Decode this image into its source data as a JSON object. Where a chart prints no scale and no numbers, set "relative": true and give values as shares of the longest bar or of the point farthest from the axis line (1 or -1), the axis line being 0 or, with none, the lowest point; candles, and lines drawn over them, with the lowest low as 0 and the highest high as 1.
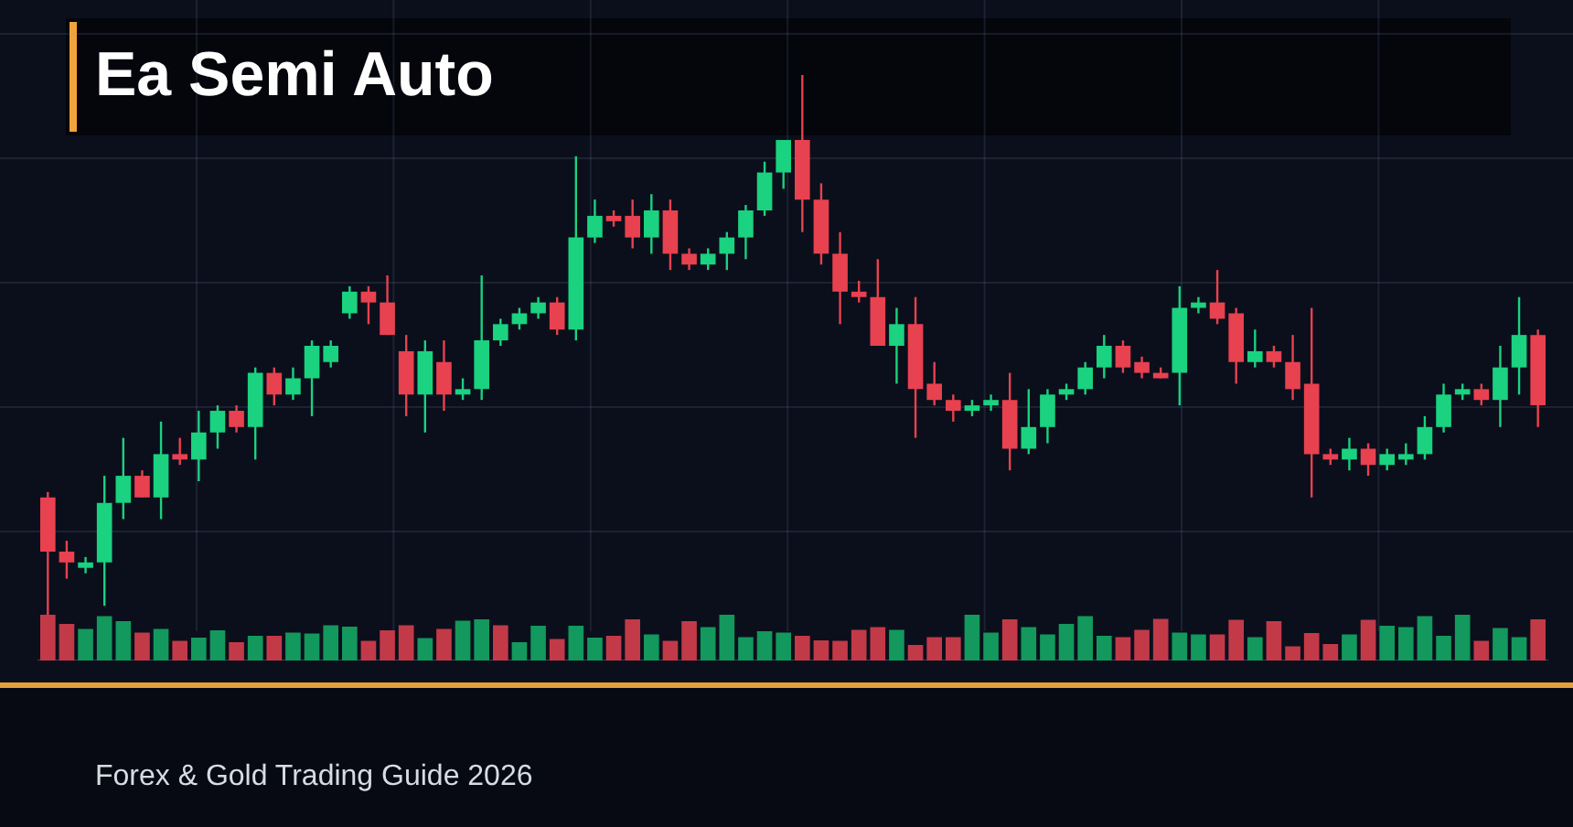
{
  "chart_data": [
    {
      "type": "candlestick",
      "title": "Ea Semi Auto",
      "subtitle": "Forex & Gold Trading Guide 2026",
      "relative": true,
      "grid": true,
      "categories": [
        null,
        null,
        null,
        null,
        null,
        null,
        null,
        null,
        null,
        null,
        null,
        null,
        null,
        null,
        null,
        null,
        null,
        null,
        null,
        null,
        null,
        null,
        null,
        null,
        null,
        null,
        null,
        null,
        null,
        null,
        null,
        null,
        null,
        null,
        null,
        null,
        null,
        null,
        null,
        null,
        null,
        null,
        null,
        null,
        null,
        null,
        null,
        null,
        null,
        null,
        null,
        null,
        null,
        null,
        null,
        null,
        null,
        null,
        null,
        null,
        null,
        null,
        null,
        null,
        null,
        null,
        null,
        null,
        null,
        null,
        null,
        null,
        null,
        null,
        null,
        null,
        null,
        null,
        null,
        null
      ],
      "ohlc": [
        [
          0.22,
          0.23,
          0,
          0.12
        ],
        [
          0.12,
          0.14,
          0.07,
          0.1
        ],
        [
          0.09,
          0.11,
          0.08,
          0.1
        ],
        [
          0.1,
          0.26,
          0.02,
          0.21
        ],
        [
          0.21,
          0.33,
          0.18,
          0.26
        ],
        [
          0.26,
          0.27,
          0.22,
          0.22
        ],
        [
          0.22,
          0.36,
          0.18,
          0.3
        ],
        [
          0.3,
          0.33,
          0.28,
          0.29
        ],
        [
          0.29,
          0.38,
          0.25,
          0.34
        ],
        [
          0.34,
          0.39,
          0.31,
          0.38
        ],
        [
          0.38,
          0.39,
          0.34,
          0.35
        ],
        [
          0.35,
          0.46,
          0.29,
          0.45
        ],
        [
          0.45,
          0.46,
          0.39,
          0.41
        ],
        [
          0.41,
          0.46,
          0.4,
          0.44
        ],
        [
          0.44,
          0.51,
          0.37,
          0.5
        ],
        [
          0.47,
          0.51,
          0.46,
          0.5
        ],
        [
          0.56,
          0.61,
          0.55,
          0.6
        ],
        [
          0.6,
          0.61,
          0.54,
          0.58
        ],
        [
          0.58,
          0.63,
          0.52,
          0.52
        ],
        [
          0.49,
          0.52,
          0.37,
          0.41
        ],
        [
          0.41,
          0.51,
          0.34,
          0.49
        ],
        [
          0.47,
          0.51,
          0.38,
          0.41
        ],
        [
          0.41,
          0.44,
          0.4,
          0.42
        ],
        [
          0.42,
          0.63,
          0.4,
          0.51
        ],
        [
          0.51,
          0.55,
          0.5,
          0.54
        ],
        [
          0.54,
          0.57,
          0.53,
          0.56
        ],
        [
          0.56,
          0.59,
          0.55,
          0.58
        ],
        [
          0.58,
          0.59,
          0.52,
          0.53
        ],
        [
          0.53,
          0.85,
          0.51,
          0.7
        ],
        [
          0.7,
          0.77,
          0.69,
          0.74
        ],
        [
          0.74,
          0.75,
          0.72,
          0.73
        ],
        [
          0.74,
          0.77,
          0.68,
          0.7
        ],
        [
          0.7,
          0.78,
          0.67,
          0.75
        ],
        [
          0.75,
          0.77,
          0.64,
          0.67
        ],
        [
          0.67,
          0.68,
          0.64,
          0.65
        ],
        [
          0.65,
          0.68,
          0.64,
          0.67
        ],
        [
          0.67,
          0.71,
          0.64,
          0.7
        ],
        [
          0.7,
          0.76,
          0.66,
          0.75
        ],
        [
          0.75,
          0.84,
          0.74,
          0.82
        ],
        [
          0.82,
          0.88,
          0.79,
          0.88
        ],
        [
          0.88,
          1,
          0.71,
          0.77
        ],
        [
          0.77,
          0.8,
          0.65,
          0.67
        ],
        [
          0.67,
          0.71,
          0.54,
          0.6
        ],
        [
          0.6,
          0.62,
          0.58,
          0.59
        ],
        [
          0.59,
          0.66,
          0.5,
          0.5
        ],
        [
          0.5,
          0.57,
          0.43,
          0.54
        ],
        [
          0.54,
          0.59,
          0.33,
          0.42
        ],
        [
          0.43,
          0.47,
          0.39,
          0.4
        ],
        [
          0.4,
          0.41,
          0.36,
          0.38
        ],
        [
          0.38,
          0.4,
          0.37,
          0.39
        ],
        [
          0.39,
          0.41,
          0.38,
          0.4
        ],
        [
          0.4,
          0.45,
          0.27,
          0.31
        ],
        [
          0.31,
          0.42,
          0.3,
          0.35
        ],
        [
          0.35,
          0.42,
          0.32,
          0.41
        ],
        [
          0.41,
          0.43,
          0.4,
          0.42
        ],
        [
          0.42,
          0.47,
          0.41,
          0.46
        ],
        [
          0.46,
          0.52,
          0.44,
          0.5
        ],
        [
          0.5,
          0.51,
          0.45,
          0.46
        ],
        [
          0.47,
          0.48,
          0.44,
          0.45
        ],
        [
          0.45,
          0.46,
          0.44,
          0.44
        ],
        [
          0.45,
          0.61,
          0.39,
          0.57
        ],
        [
          0.57,
          0.59,
          0.56,
          0.58
        ],
        [
          0.58,
          0.64,
          0.54,
          0.55
        ],
        [
          0.56,
          0.57,
          0.43,
          0.47
        ],
        [
          0.47,
          0.53,
          0.46,
          0.49
        ],
        [
          0.49,
          0.5,
          0.46,
          0.47
        ],
        [
          0.47,
          0.52,
          0.4,
          0.42
        ],
        [
          0.43,
          0.57,
          0.22,
          0.3
        ],
        [
          0.3,
          0.31,
          0.28,
          0.29
        ],
        [
          0.29,
          0.33,
          0.27,
          0.31
        ],
        [
          0.31,
          0.32,
          0.26,
          0.28
        ],
        [
          0.28,
          0.31,
          0.27,
          0.3
        ],
        [
          0.29,
          0.32,
          0.28,
          0.3
        ],
        [
          0.3,
          0.37,
          0.29,
          0.35
        ],
        [
          0.35,
          0.43,
          0.34,
          0.41
        ],
        [
          0.41,
          0.43,
          0.4,
          0.42
        ],
        [
          0.42,
          0.43,
          0.39,
          0.4
        ],
        [
          0.4,
          0.5,
          0.35,
          0.46
        ],
        [
          0.46,
          0.59,
          0.41,
          0.52
        ],
        [
          0.52,
          0.53,
          0.35,
          0.39
        ]
      ],
      "colors": [
        "#e8414f",
        "#e8414f",
        "#1ad27f",
        "#1ad27f",
        "#1ad27f",
        "#e8414f",
        "#1ad27f",
        "#e8414f",
        "#1ad27f",
        "#1ad27f",
        "#e8414f",
        "#1ad27f",
        "#e8414f",
        "#1ad27f",
        "#1ad27f",
        "#1ad27f",
        "#1ad27f",
        "#e8414f",
        "#e8414f",
        "#e8414f",
        "#1ad27f",
        "#e8414f",
        "#1ad27f",
        "#1ad27f",
        "#1ad27f",
        "#1ad27f",
        "#1ad27f",
        "#e8414f",
        "#1ad27f",
        "#1ad27f",
        "#e8414f",
        "#e8414f",
        "#1ad27f",
        "#e8414f",
        "#e8414f",
        "#1ad27f",
        "#1ad27f",
        "#1ad27f",
        "#1ad27f",
        "#1ad27f",
        "#e8414f",
        "#e8414f",
        "#e8414f",
        "#e8414f",
        "#e8414f",
        "#1ad27f",
        "#e8414f",
        "#e8414f",
        "#e8414f",
        "#1ad27f",
        "#1ad27f",
        "#e8414f",
        "#1ad27f",
        "#1ad27f",
        "#1ad27f",
        "#1ad27f",
        "#1ad27f",
        "#e8414f",
        "#e8414f",
        "#e8414f",
        "#1ad27f",
        "#1ad27f",
        "#e8414f",
        "#e8414f",
        "#1ad27f",
        "#e8414f",
        "#e8414f",
        "#e8414f",
        "#e8414f",
        "#1ad27f",
        "#e8414f",
        "#1ad27f",
        "#1ad27f",
        "#1ad27f",
        "#1ad27f",
        "#1ad27f",
        "#e8414f",
        "#1ad27f",
        "#1ad27f",
        "#e8414f"
      ]
    },
    {
      "type": "bar",
      "relative": true,
      "categories": [
        null,
        null,
        null,
        null,
        null,
        null,
        null,
        null,
        null,
        null,
        null,
        null,
        null,
        null,
        null,
        null,
        null,
        null,
        null,
        null,
        null,
        null,
        null,
        null,
        null,
        null,
        null,
        null,
        null,
        null,
        null,
        null,
        null,
        null,
        null,
        null,
        null,
        null,
        null,
        null,
        null,
        null,
        null,
        null,
        null,
        null,
        null,
        null,
        null,
        null,
        null,
        null,
        null,
        null,
        null,
        null,
        null,
        null,
        null,
        null,
        null,
        null,
        null,
        null,
        null,
        null,
        null,
        null,
        null,
        null,
        null,
        null,
        null,
        null,
        null,
        null,
        null,
        null,
        null,
        null
      ],
      "values": [
        1,
        0.8,
        0.69,
        0.97,
        0.86,
        0.61,
        0.69,
        0.43,
        0.5,
        0.66,
        0.4,
        0.54,
        0.54,
        0.61,
        0.59,
        0.77,
        0.74,
        0.43,
        0.66,
        0.77,
        0.49,
        0.69,
        0.87,
        0.9,
        0.77,
        0.4,
        0.76,
        0.47,
        0.76,
        0.5,
        0.54,
        0.9,
        0.57,
        0.43,
        0.86,
        0.73,
        1,
        0.51,
        0.64,
        0.61,
        0.54,
        0.44,
        0.43,
        0.67,
        0.73,
        0.67,
        0.34,
        0.51,
        0.51,
        1,
        0.61,
        0.9,
        0.73,
        0.57,
        0.8,
        0.97,
        0.54,
        0.51,
        0.67,
        0.91,
        0.61,
        0.57,
        0.57,
        0.89,
        0.51,
        0.86,
        0.31,
        0.6,
        0.36,
        0.57,
        0.89,
        0.76,
        0.73,
        0.97,
        0.54,
        1,
        0.43,
        0.71,
        0.51,
        0.9
      ],
      "colors": [
        "#c23a48",
        "#c23a48",
        "#13985d",
        "#13985d",
        "#13985d",
        "#c23a48",
        "#13985d",
        "#c23a48",
        "#13985d",
        "#13985d",
        "#c23a48",
        "#13985d",
        "#c23a48",
        "#13985d",
        "#13985d",
        "#13985d",
        "#13985d",
        "#c23a48",
        "#c23a48",
        "#c23a48",
        "#13985d",
        "#c23a48",
        "#13985d",
        "#13985d",
        "#c23a48",
        "#13985d",
        "#13985d",
        "#c23a48",
        "#13985d",
        "#13985d",
        "#c23a48",
        "#c23a48",
        "#13985d",
        "#c23a48",
        "#c23a48",
        "#13985d",
        "#13985d",
        "#13985d",
        "#13985d",
        "#13985d",
        "#c23a48",
        "#c23a48",
        "#c23a48",
        "#c23a48",
        "#c23a48",
        "#13985d",
        "#c23a48",
        "#c23a48",
        "#c23a48",
        "#13985d",
        "#13985d",
        "#c23a48",
        "#13985d",
        "#13985d",
        "#13985d",
        "#13985d",
        "#13985d",
        "#c23a48",
        "#c23a48",
        "#c23a48",
        "#13985d",
        "#13985d",
        "#c23a48",
        "#c23a48",
        "#13985d",
        "#c23a48",
        "#c23a48",
        "#c23a48",
        "#c23a48",
        "#13985d",
        "#c23a48",
        "#13985d",
        "#13985d",
        "#13985d",
        "#13985d",
        "#13985d",
        "#c23a48",
        "#13985d",
        "#13985d",
        "#c23a48"
      ]
    }
  ]
}
